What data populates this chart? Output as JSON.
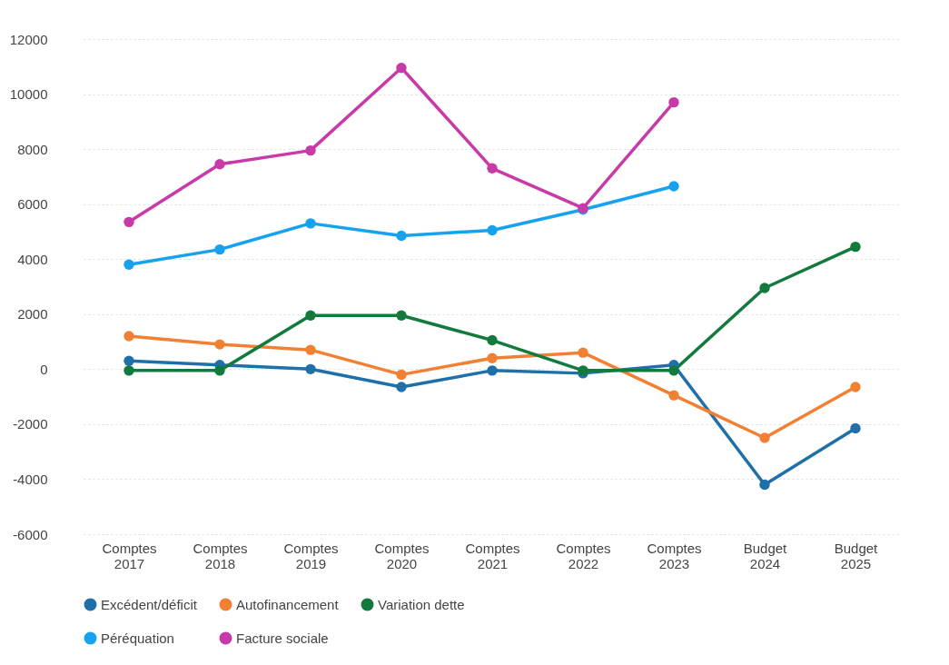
{
  "chart_data": {
    "type": "line",
    "categories": [
      "Comptes 2017",
      "Comptes 2018",
      "Comptes 2019",
      "Comptes 2020",
      "Comptes 2021",
      "Comptes 2022",
      "Comptes 2023",
      "Budget 2024",
      "Budget 2025"
    ],
    "series": [
      {
        "name": "Excédent/déficit",
        "color": "#1f6fa8",
        "values": [
          300,
          150,
          0,
          -650,
          -50,
          -150,
          150,
          -4200,
          -2150
        ]
      },
      {
        "name": "Autofinancement",
        "color": "#f28032",
        "values": [
          1200,
          900,
          700,
          -200,
          400,
          600,
          -950,
          -2500,
          -650
        ]
      },
      {
        "name": "Variation dette",
        "color": "#137a3d",
        "values": [
          -50,
          -50,
          1950,
          1950,
          1050,
          -50,
          -50,
          2950,
          4450
        ]
      },
      {
        "name": "Péréquation",
        "color": "#16a2ef",
        "values": [
          3800,
          4350,
          5300,
          4850,
          5050,
          5800,
          6650,
          null,
          null
        ]
      },
      {
        "name": "Facture sociale",
        "color": "#c83aa8",
        "values": [
          5350,
          7450,
          7950,
          10950,
          7300,
          5850,
          9700,
          null,
          null
        ]
      }
    ],
    "ylim": [
      -6000,
      12000
    ],
    "yticks": [
      -6000,
      -4000,
      -2000,
      0,
      2000,
      4000,
      6000,
      8000,
      10000,
      12000
    ],
    "grid": "y",
    "legend": "bottom",
    "marker": "circle",
    "line_style": "solid"
  }
}
